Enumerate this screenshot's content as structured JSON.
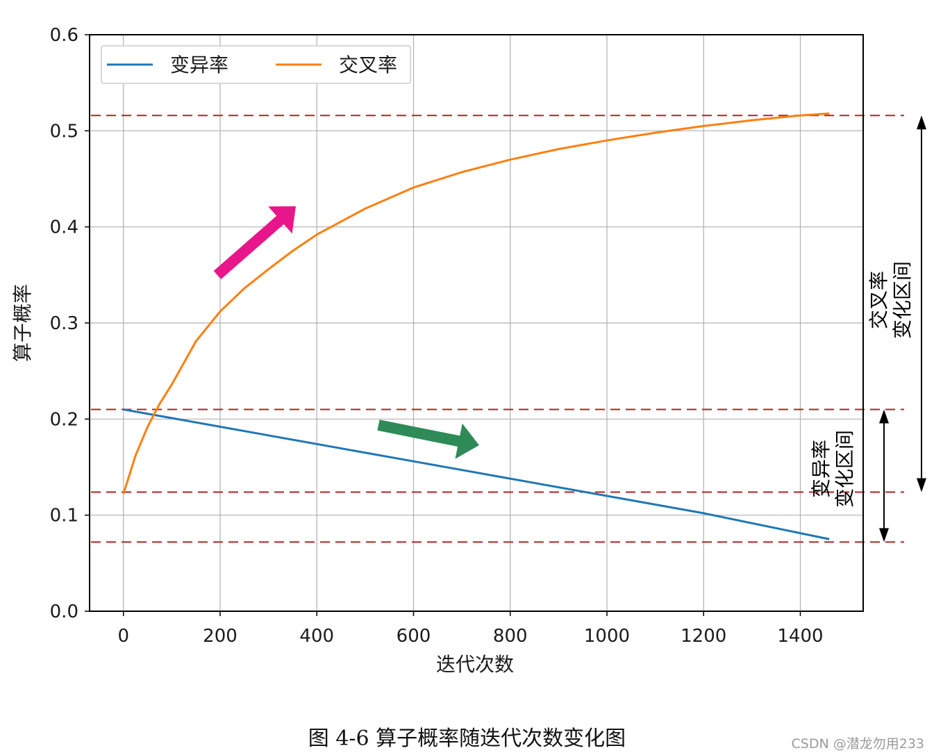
{
  "chart_data": {
    "type": "line",
    "xlabel": "迭代次数",
    "ylabel": "算子概率",
    "xlim": [
      -70,
      1530
    ],
    "ylim": [
      0.0,
      0.6
    ],
    "x_ticks": [
      0,
      200,
      400,
      600,
      800,
      1000,
      1200,
      1400
    ],
    "y_ticks": [
      0.0,
      0.1,
      0.2,
      0.3,
      0.4,
      0.5,
      0.6
    ],
    "y_tick_labels": [
      "0.0",
      "0.1",
      "0.2",
      "0.3",
      "0.4",
      "0.5",
      "0.6"
    ],
    "grid": true,
    "legend_position": "top-left",
    "series": [
      {
        "name": "变异率",
        "color": "#1f77b4",
        "x": [
          0,
          200,
          400,
          600,
          800,
          1000,
          1200,
          1460
        ],
        "y": [
          0.21,
          0.192,
          0.174,
          0.156,
          0.138,
          0.12,
          0.102,
          0.075
        ]
      },
      {
        "name": "交叉率",
        "color": "#ff7f0e",
        "x": [
          0,
          25,
          50,
          75,
          100,
          150,
          200,
          250,
          300,
          350,
          400,
          500,
          600,
          700,
          800,
          900,
          1000,
          1100,
          1200,
          1300,
          1400,
          1460
        ],
        "y": [
          0.122,
          0.162,
          0.192,
          0.216,
          0.236,
          0.281,
          0.312,
          0.336,
          0.356,
          0.375,
          0.392,
          0.419,
          0.441,
          0.457,
          0.47,
          0.481,
          0.49,
          0.498,
          0.505,
          0.511,
          0.516,
          0.518
        ]
      }
    ],
    "reference_lines": {
      "color": "#b22222",
      "y": [
        0.516,
        0.21,
        0.124,
        0.072
      ]
    },
    "annotations": {
      "crossover_range_label": [
        "交叉率",
        "变化区间"
      ],
      "mutation_range_label": [
        "变异率",
        "变化区间"
      ],
      "crossover_range": [
        0.124,
        0.516
      ],
      "mutation_range": [
        0.072,
        0.21
      ],
      "up_arrow_color": "#e8168a",
      "down_arrow_color": "#2e8b57"
    }
  },
  "caption": "图  4-6  算子概率随迭代次数变化图",
  "watermark": "CSDN @潜龙勿用233"
}
